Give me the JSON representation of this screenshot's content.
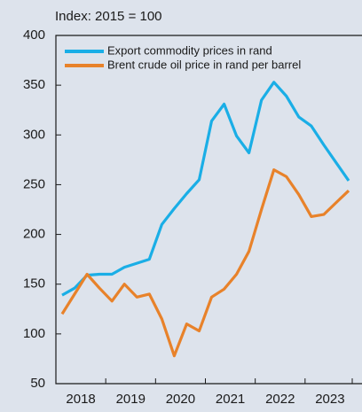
{
  "chart_data": {
    "type": "line",
    "subtitle": "Index: 2015 = 100",
    "categories": [
      "2018",
      null,
      null,
      null,
      "2019",
      null,
      null,
      null,
      "2020",
      null,
      null,
      null,
      "2021",
      null,
      null,
      null,
      "2022",
      null,
      null,
      null,
      "2023",
      null,
      null,
      null
    ],
    "series": [
      {
        "name": "Export commodity prices in rand",
        "color": "#1aaee6",
        "values": [
          139,
          146,
          159,
          160,
          160,
          167,
          171,
          175,
          210,
          226,
          241,
          255,
          314,
          331,
          299,
          282,
          335,
          353,
          339,
          318,
          309,
          290,
          272,
          254
        ]
      },
      {
        "name": "Brent crude oil price in rand per barrel",
        "color": "#e8822a",
        "values": [
          120,
          140,
          160,
          146,
          133,
          150,
          137,
          140,
          115,
          78,
          110,
          103,
          137,
          145,
          160,
          183,
          225,
          265,
          258,
          240,
          218,
          220,
          232,
          244
        ]
      }
    ],
    "ylim": [
      50,
      400
    ],
    "yticks": [
      50,
      100,
      150,
      200,
      250,
      300,
      350,
      400
    ],
    "grid": false,
    "legend": "upper left"
  }
}
